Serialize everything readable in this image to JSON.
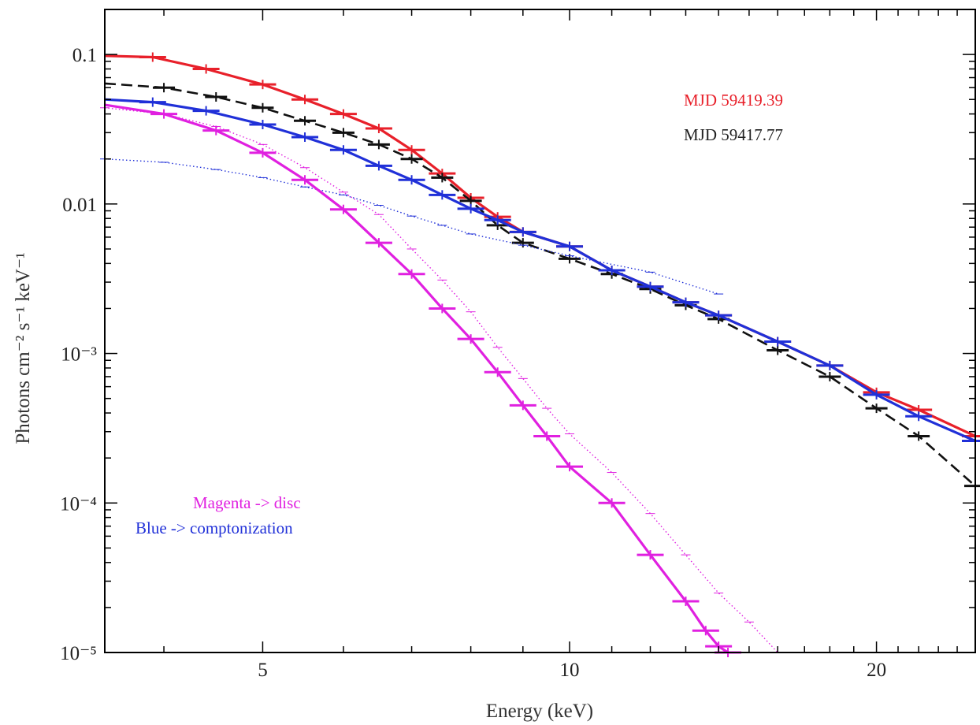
{
  "chart_data": {
    "type": "line",
    "xlabel": "Energy (keV)",
    "ylabel": "Photons cm⁻² s⁻¹ keV⁻¹",
    "x_scale": "log",
    "y_scale": "log",
    "xlim": [
      3.5,
      25
    ],
    "ylim": [
      1e-05,
      0.2
    ],
    "x_major_ticks": [
      {
        "value": 5,
        "label": "5"
      },
      {
        "value": 10,
        "label": "10"
      },
      {
        "value": 20,
        "label": "20"
      }
    ],
    "y_major_ticks": [
      {
        "value": 0.1,
        "label": "0.1"
      },
      {
        "value": 0.01,
        "label": "0.01"
      },
      {
        "value": 0.001,
        "label": "10⁻³"
      },
      {
        "value": 0.0001,
        "label": "10⁻⁴"
      },
      {
        "value": 1e-05,
        "label": "10⁻⁵"
      }
    ],
    "grid": false,
    "legend": {
      "placement": "top-right",
      "entries": [
        {
          "label": "MJD 59419.39",
          "color": "#e8202a"
        },
        {
          "label": "MJD 59417.77",
          "color": "#222222"
        }
      ]
    },
    "annotations": [
      {
        "text": "Magenta -> disc",
        "color": "#e020e0"
      },
      {
        "text": "Blue -> comptonization",
        "color": "#2030d8"
      }
    ],
    "series": [
      {
        "color": "#e8202a",
        "style": "solid-with-data",
        "x": [
          3.5,
          3.9,
          4.4,
          5.0,
          5.5,
          6.0,
          6.5,
          7.0,
          7.5,
          8.0,
          8.5,
          9.0,
          10.0,
          11.0,
          12.0,
          13.0,
          14.0,
          16.0,
          18.0,
          20.0,
          22.0,
          25.0
        ],
        "y": [
          0.098,
          0.096,
          0.08,
          0.063,
          0.05,
          0.04,
          0.032,
          0.023,
          0.016,
          0.011,
          0.0082,
          0.0065,
          0.0052,
          0.0036,
          0.0028,
          0.0022,
          0.0018,
          0.0012,
          0.00083,
          0.00055,
          0.00042,
          0.00028
        ]
      },
      {
        "color": "#111111",
        "style": "dashed-with-data",
        "x": [
          3.5,
          4.0,
          4.5,
          5.0,
          5.5,
          6.0,
          6.5,
          7.0,
          7.5,
          8.0,
          8.5,
          9.0,
          10.0,
          11.0,
          12.0,
          13.0,
          14.0,
          16.0,
          18.0,
          20.0,
          22.0,
          25.0
        ],
        "y": [
          0.064,
          0.06,
          0.052,
          0.044,
          0.036,
          0.03,
          0.025,
          0.02,
          0.015,
          0.0105,
          0.0072,
          0.0055,
          0.0043,
          0.0034,
          0.0027,
          0.0021,
          0.0017,
          0.00105,
          0.0007,
          0.00043,
          0.00028,
          0.00013
        ]
      },
      {
        "color": "#2030d8",
        "style": "solid-with-data",
        "x": [
          3.5,
          3.9,
          4.4,
          5.0,
          5.5,
          6.0,
          6.5,
          7.0,
          7.5,
          8.0,
          8.5,
          9.0,
          10.0,
          11.0,
          12.0,
          13.0,
          14.0,
          16.0,
          18.0,
          20.0,
          22.0,
          25.0
        ],
        "y": [
          0.05,
          0.048,
          0.042,
          0.034,
          0.028,
          0.023,
          0.018,
          0.0145,
          0.0115,
          0.0093,
          0.0078,
          0.0065,
          0.0052,
          0.0036,
          0.0028,
          0.0022,
          0.0018,
          0.0012,
          0.00083,
          0.00053,
          0.00038,
          0.00026
        ]
      },
      {
        "color": "#2030d8",
        "style": "dotted",
        "x": [
          3.5,
          4.0,
          4.5,
          5.0,
          5.5,
          6.0,
          6.5,
          7.0,
          7.5,
          8.0,
          9.0,
          10.0,
          12.0,
          14.0
        ],
        "y": [
          0.02,
          0.019,
          0.017,
          0.015,
          0.013,
          0.0115,
          0.0098,
          0.0083,
          0.0072,
          0.0063,
          0.0053,
          0.0045,
          0.0035,
          0.0025
        ]
      },
      {
        "color": "#e020e0",
        "style": "solid-with-data",
        "x": [
          3.5,
          4.0,
          4.5,
          5.0,
          5.5,
          6.0,
          6.5,
          7.0,
          7.5,
          8.0,
          8.5,
          9.0,
          9.5,
          10.0,
          11.0,
          12.0,
          13.0,
          13.6,
          14.0,
          14.3
        ],
        "y": [
          0.046,
          0.04,
          0.031,
          0.022,
          0.0145,
          0.0092,
          0.0055,
          0.0034,
          0.002,
          0.00125,
          0.00075,
          0.00045,
          0.00028,
          0.000175,
          0.0001,
          4.5e-05,
          2.2e-05,
          1.4e-05,
          1.1e-05,
          1e-05
        ]
      },
      {
        "color": "#e020e0",
        "style": "dotted",
        "x": [
          3.5,
          4.0,
          4.5,
          5.0,
          5.5,
          6.0,
          6.5,
          7.0,
          7.5,
          8.0,
          8.5,
          9.0,
          9.5,
          10.0,
          11.0,
          12.0,
          13.0,
          14.0,
          15.0,
          16.0
        ],
        "y": [
          0.044,
          0.04,
          0.033,
          0.025,
          0.0175,
          0.012,
          0.0085,
          0.005,
          0.0031,
          0.0019,
          0.0011,
          0.00068,
          0.00043,
          0.00029,
          0.00016,
          8.5e-05,
          4.5e-05,
          2.5e-05,
          1.6e-05,
          1e-05
        ]
      }
    ]
  }
}
